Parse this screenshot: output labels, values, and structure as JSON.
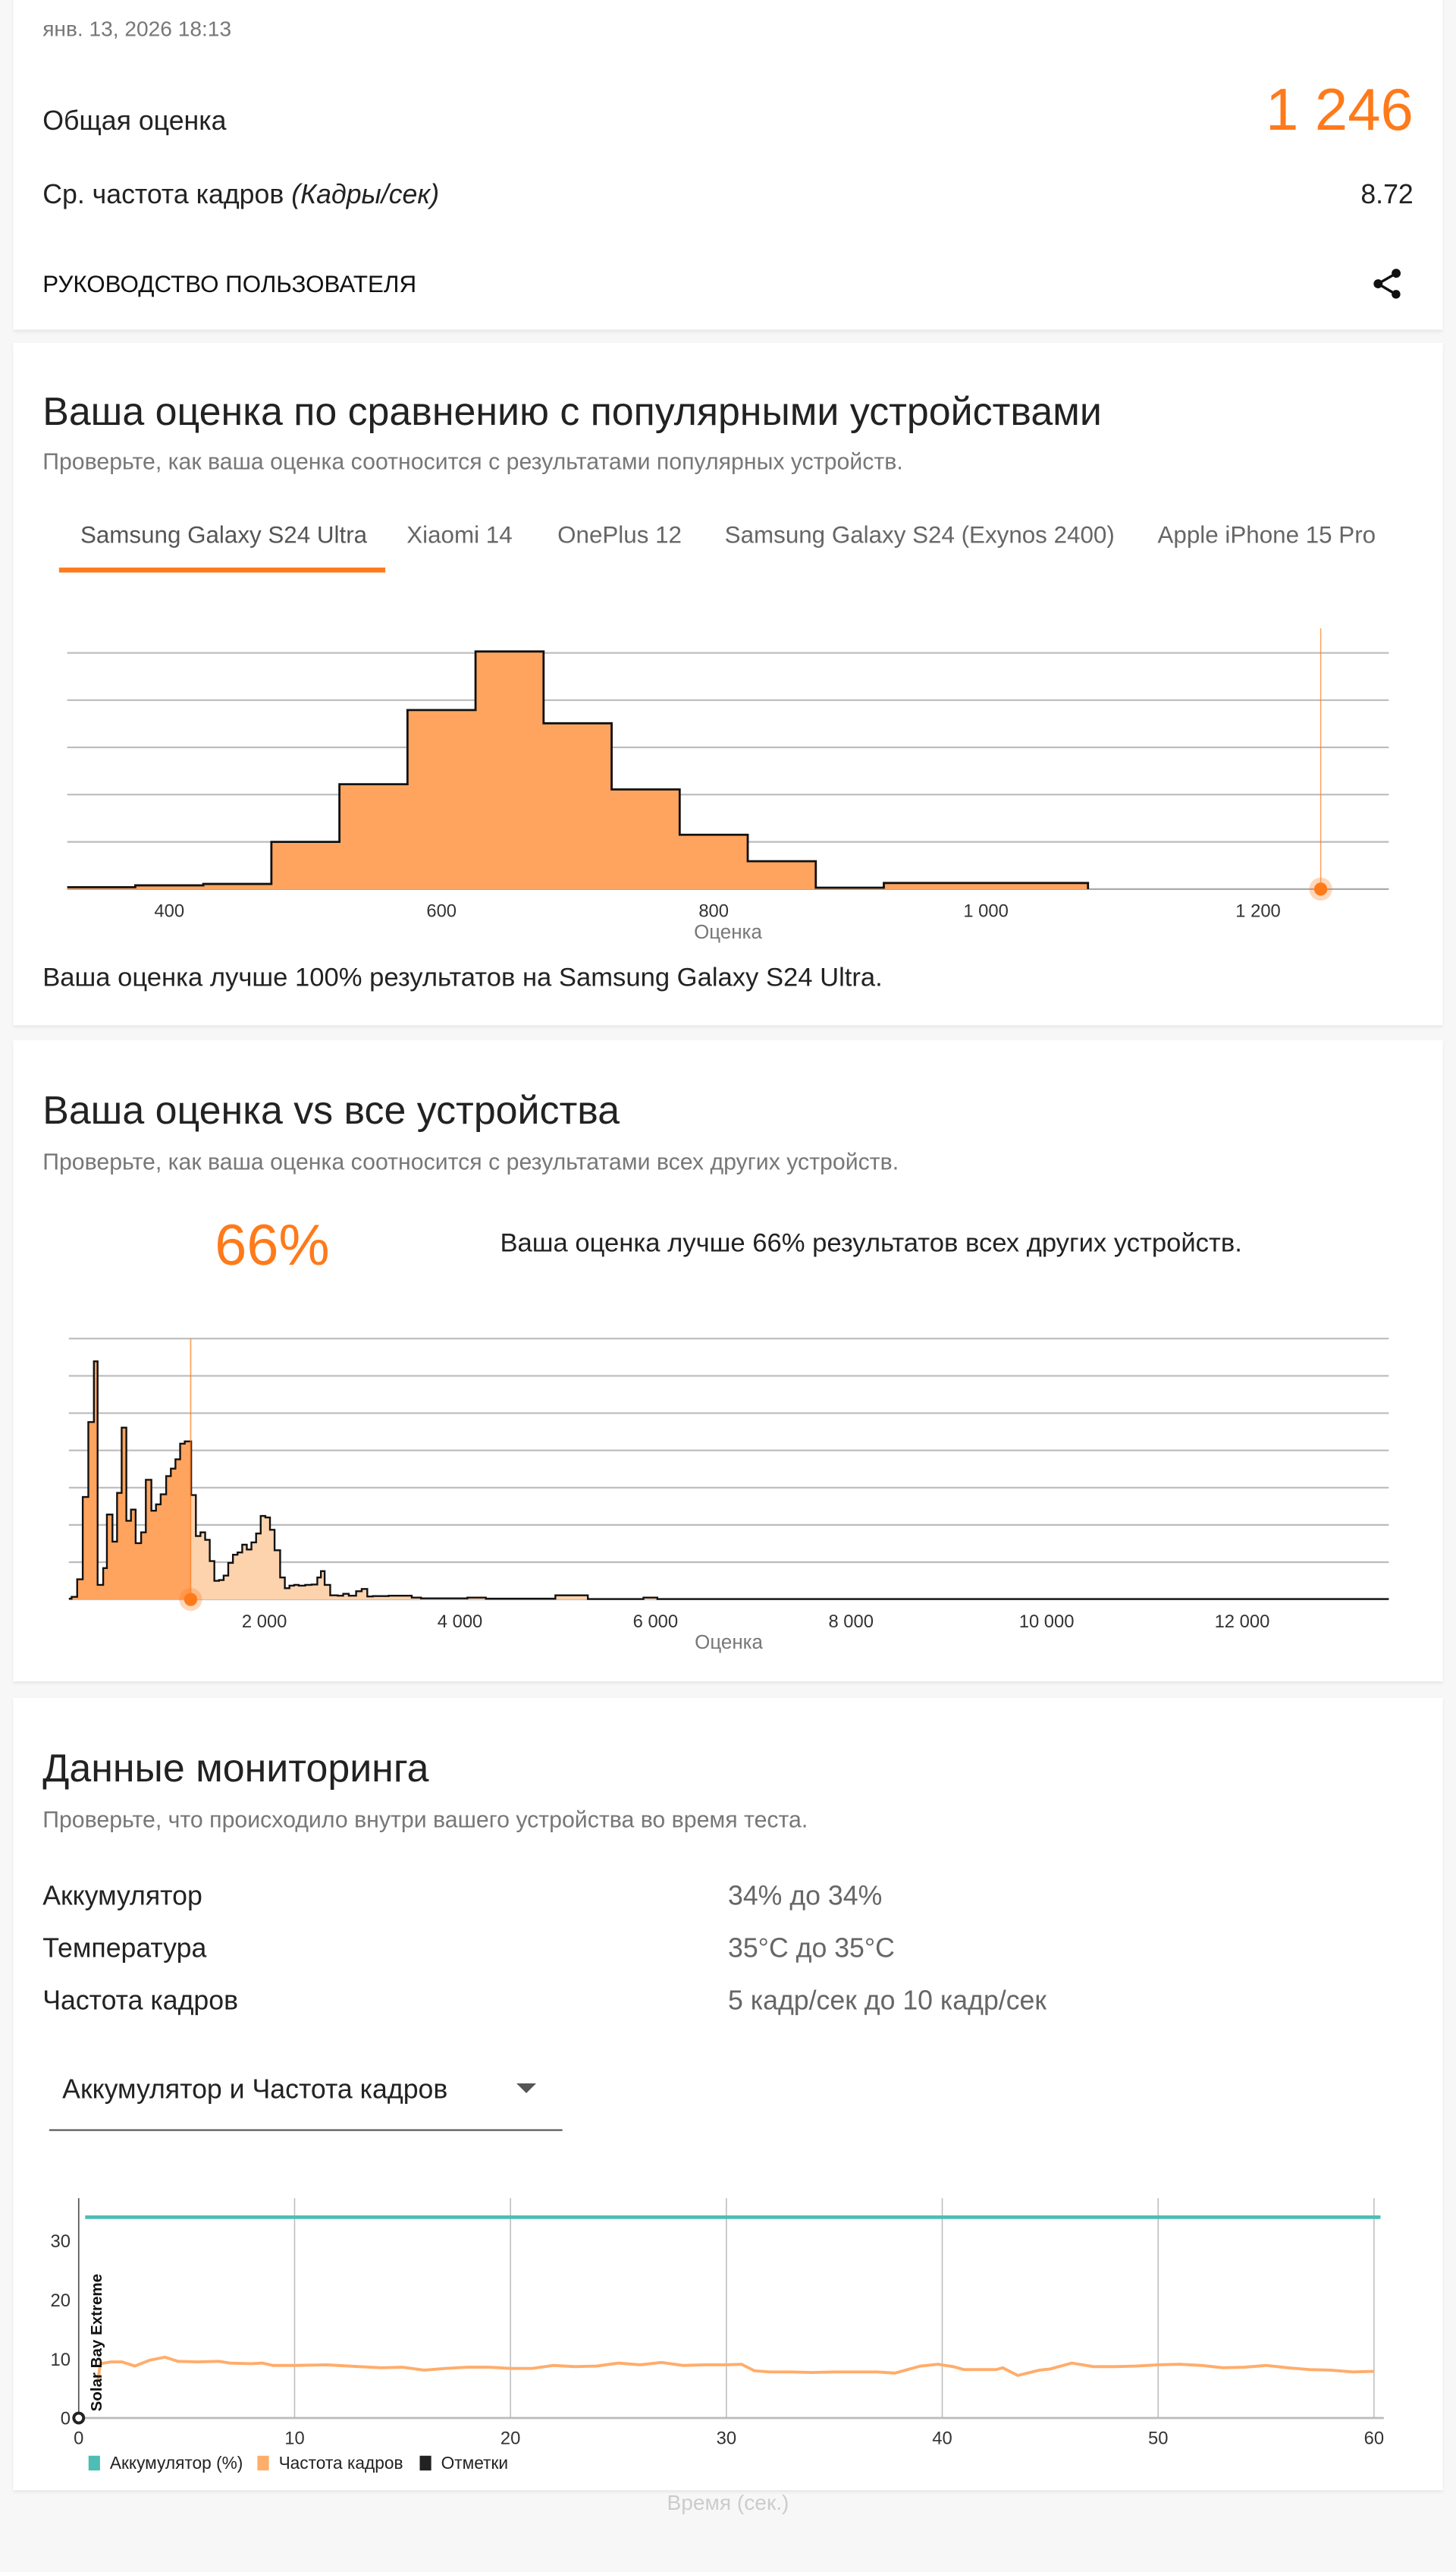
{
  "result": {
    "date": "янв. 13, 2026 18:13",
    "overall_label": "Общая оценка",
    "overall_score": "1 246",
    "fps_label": "Ср. частота кадров",
    "fps_unit": "(Кадры/сек)",
    "fps_value": "8.72",
    "user_guide": "РУКОВОДСТВО ПОЛЬЗОВАТЕЛЯ",
    "share_icon": "share-icon"
  },
  "popular": {
    "title": "Ваша оценка по сравнению с популярными устройствами",
    "subtitle": "Проверьте, как ваша оценка соотносится с результатами популярных устройств.",
    "tabs": [
      "Samsung Galaxy S24 Ultra",
      "Xiaomi 14",
      "OnePlus 12",
      "Samsung Galaxy S24 (Exynos 2400)",
      "Apple iPhone 15 Pro"
    ],
    "active_tab": 0,
    "summary": "Ваша оценка лучше 100% результатов на Samsung Galaxy S24 Ultra."
  },
  "all": {
    "title": "Ваша оценка vs все устройства",
    "subtitle": "Проверьте, как ваша оценка соотносится с результатами всех других устройств.",
    "percent": "66%",
    "summary": "Ваша оценка лучше 66% результатов всех других устройств."
  },
  "monitoring": {
    "title": "Данные мониторинга",
    "subtitle": "Проверьте, что происходило внутри вашего устройства во время теста.",
    "rows": [
      {
        "label": "Аккумулятор",
        "value": "34% до 34%"
      },
      {
        "label": "Температура",
        "value": "35°C до 35°C"
      },
      {
        "label": "Частота кадров",
        "value": "5 кадр/сек до 10 кадр/сек"
      }
    ],
    "dropdown": "Аккумулятор и Частота кадров"
  },
  "colors": {
    "accent": "#ff7a1a",
    "hist_fill": "#ffa45e",
    "hist_fill_light": "#fdd3ae",
    "battery": "#4dbdb5",
    "fps": "#ffad6b",
    "marks": "#222222"
  },
  "chart_data": [
    {
      "type": "bar",
      "xlabel": "Оценка",
      "xlim": [
        325,
        1296
      ],
      "ylim": [
        0,
        5
      ],
      "grid": true,
      "xticks": [
        400,
        600,
        800,
        1000,
        1200
      ],
      "xtick_labels": [
        "400",
        "600",
        "800",
        "1 000",
        "1 200"
      ],
      "bin_edges": [
        325,
        375,
        425,
        475,
        525,
        575,
        625,
        675,
        725,
        775,
        825,
        875,
        925,
        975,
        1025,
        1075
      ],
      "values": [
        0.04,
        0.08,
        0.11,
        1.0,
        2.22,
        3.79,
        5.03,
        3.51,
        2.11,
        1.15,
        0.59,
        0.03,
        0.13,
        0.13,
        0.13
      ],
      "your_score": 1246
    },
    {
      "type": "area",
      "xlabel": "Оценка",
      "xlim": [
        0,
        13500
      ],
      "ylim": [
        0,
        7
      ],
      "grid": true,
      "xticks": [
        2000,
        4000,
        6000,
        8000,
        10000,
        12000
      ],
      "xtick_labels": [
        "2 000",
        "4 000",
        "6 000",
        "8 000",
        "10 000",
        "12 000"
      ],
      "bin_starts": [
        0,
        28,
        85,
        142,
        199,
        256,
        294,
        351,
        389,
        446,
        493,
        540,
        588,
        635,
        683,
        739,
        787,
        844,
        891,
        939,
        995,
        1043,
        1090,
        1138,
        1185,
        1251,
        1299,
        1346,
        1394,
        1441,
        1488,
        1536,
        1583,
        1630,
        1678,
        1725,
        1773,
        1820,
        1867,
        1915,
        1962,
        2010,
        2057,
        2104,
        2161,
        2209,
        2256,
        2304,
        2351,
        2417,
        2483,
        2541,
        2578,
        2616,
        2673,
        2749,
        2806,
        2863,
        2938,
        2995,
        3052,
        3109,
        3270,
        3507,
        3602,
        4076,
        4265,
        4976,
        5308,
        5877,
        6019
      ],
      "values": [
        0.02,
        0.07,
        0.54,
        2.75,
        4.76,
        6.39,
        0.39,
        0.84,
        2.28,
        1.55,
        2.86,
        4.61,
        2.11,
        2.41,
        1.51,
        1.8,
        3.21,
        2.38,
        2.55,
        2.82,
        3.31,
        3.51,
        3.76,
        4.18,
        4.24,
        2.8,
        1.7,
        1.8,
        1.6,
        1.03,
        0.5,
        0.52,
        0.64,
        0.98,
        1.2,
        1.26,
        1.47,
        1.34,
        1.53,
        1.77,
        2.24,
        2.2,
        1.87,
        1.32,
        0.59,
        0.3,
        0.37,
        0.39,
        0.37,
        0.39,
        0.4,
        0.59,
        0.76,
        0.39,
        0.11,
        0.1,
        0.15,
        0.1,
        0.22,
        0.28,
        0.08,
        0.09,
        0.1,
        0.05,
        0.03,
        0.05,
        0.02,
        0.11,
        0.01,
        0.05,
        0.01
      ],
      "your_score": 1246
    },
    {
      "type": "line",
      "xlabel": "Время (сек.)",
      "xlim": [
        0,
        60
      ],
      "ylim": [
        0,
        36
      ],
      "grid": true,
      "xticks": [
        0,
        10,
        20,
        30,
        40,
        50,
        60
      ],
      "yticks": [
        0,
        10,
        20,
        30
      ],
      "annotation": "Solar Bay Extreme",
      "series": [
        {
          "name": "Аккумулятор (%)",
          "x": [
            0.3,
            60.3
          ],
          "y": [
            34,
            34
          ]
        },
        {
          "name": "Частота кадров",
          "x": [
            0.9,
            1,
            1.5,
            2,
            2.6,
            3.3,
            4,
            4.6,
            5.5,
            6.5,
            7,
            8,
            8.5,
            9,
            10,
            11.5,
            12,
            13,
            14,
            15,
            16,
            17,
            18,
            19,
            20,
            21,
            22,
            23,
            24,
            25,
            26,
            27,
            28,
            29,
            30,
            30.7,
            31.3,
            32,
            33,
            34,
            35,
            36,
            37,
            37.8,
            38.5,
            39,
            39.8,
            40.5,
            41,
            42,
            42.5,
            42.8,
            43.5,
            44.5,
            45,
            46,
            47,
            48,
            49,
            50,
            51,
            52,
            53,
            54,
            55,
            56,
            57,
            58,
            59,
            60
          ],
          "y": [
            6.5,
            9.2,
            9.5,
            9.5,
            8.8,
            9.8,
            10.3,
            9.6,
            9.5,
            9.6,
            9.3,
            9.2,
            9.3,
            8.9,
            8.9,
            9.0,
            8.9,
            8.7,
            8.5,
            8.6,
            8.1,
            8.4,
            8.6,
            8.6,
            8.4,
            8.4,
            8.9,
            8.7,
            8.8,
            9.3,
            9.0,
            9.4,
            8.9,
            9.0,
            9.0,
            9.1,
            8.0,
            7.8,
            7.8,
            7.7,
            7.8,
            7.8,
            7.8,
            7.6,
            8.3,
            8.8,
            9.1,
            8.7,
            8.2,
            8.2,
            8.2,
            8.5,
            7.2,
            8.1,
            8.3,
            9.3,
            8.7,
            8.7,
            8.8,
            9.0,
            9.1,
            8.9,
            8.5,
            8.6,
            8.9,
            8.5,
            8.2,
            8.1,
            7.8,
            7.9
          ]
        },
        {
          "name": "Отметки",
          "x": [
            0
          ],
          "y": [
            0
          ]
        }
      ]
    }
  ]
}
